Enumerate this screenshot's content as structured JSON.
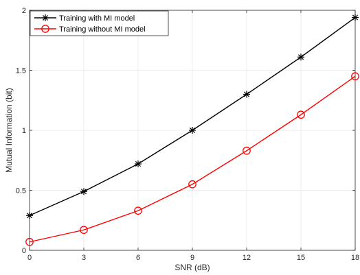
{
  "chart_data": {
    "type": "line",
    "title": "",
    "xlabel": "SNR (dB)",
    "ylabel": "Mutual Information (bit)",
    "xlim": [
      0,
      18
    ],
    "ylim": [
      0,
      2
    ],
    "xticks": [
      0,
      3,
      6,
      9,
      12,
      15,
      18
    ],
    "yticks": [
      0,
      0.5,
      1,
      1.5,
      2
    ],
    "ytick_labels": [
      "0",
      "0.5",
      "1",
      "1.5",
      "2"
    ],
    "grid": true,
    "legend_position": "top-left",
    "x": [
      0,
      3,
      6,
      9,
      12,
      15,
      18
    ],
    "series": [
      {
        "name": "Training with MI model",
        "values": [
          0.29,
          0.49,
          0.72,
          1.0,
          1.3,
          1.61,
          1.94
        ],
        "color": "#000000",
        "marker": "asterisk"
      },
      {
        "name": "Training without MI model",
        "values": [
          0.07,
          0.17,
          0.33,
          0.55,
          0.83,
          1.13,
          1.45
        ],
        "color": "#ff0000",
        "marker": "circle"
      }
    ]
  }
}
